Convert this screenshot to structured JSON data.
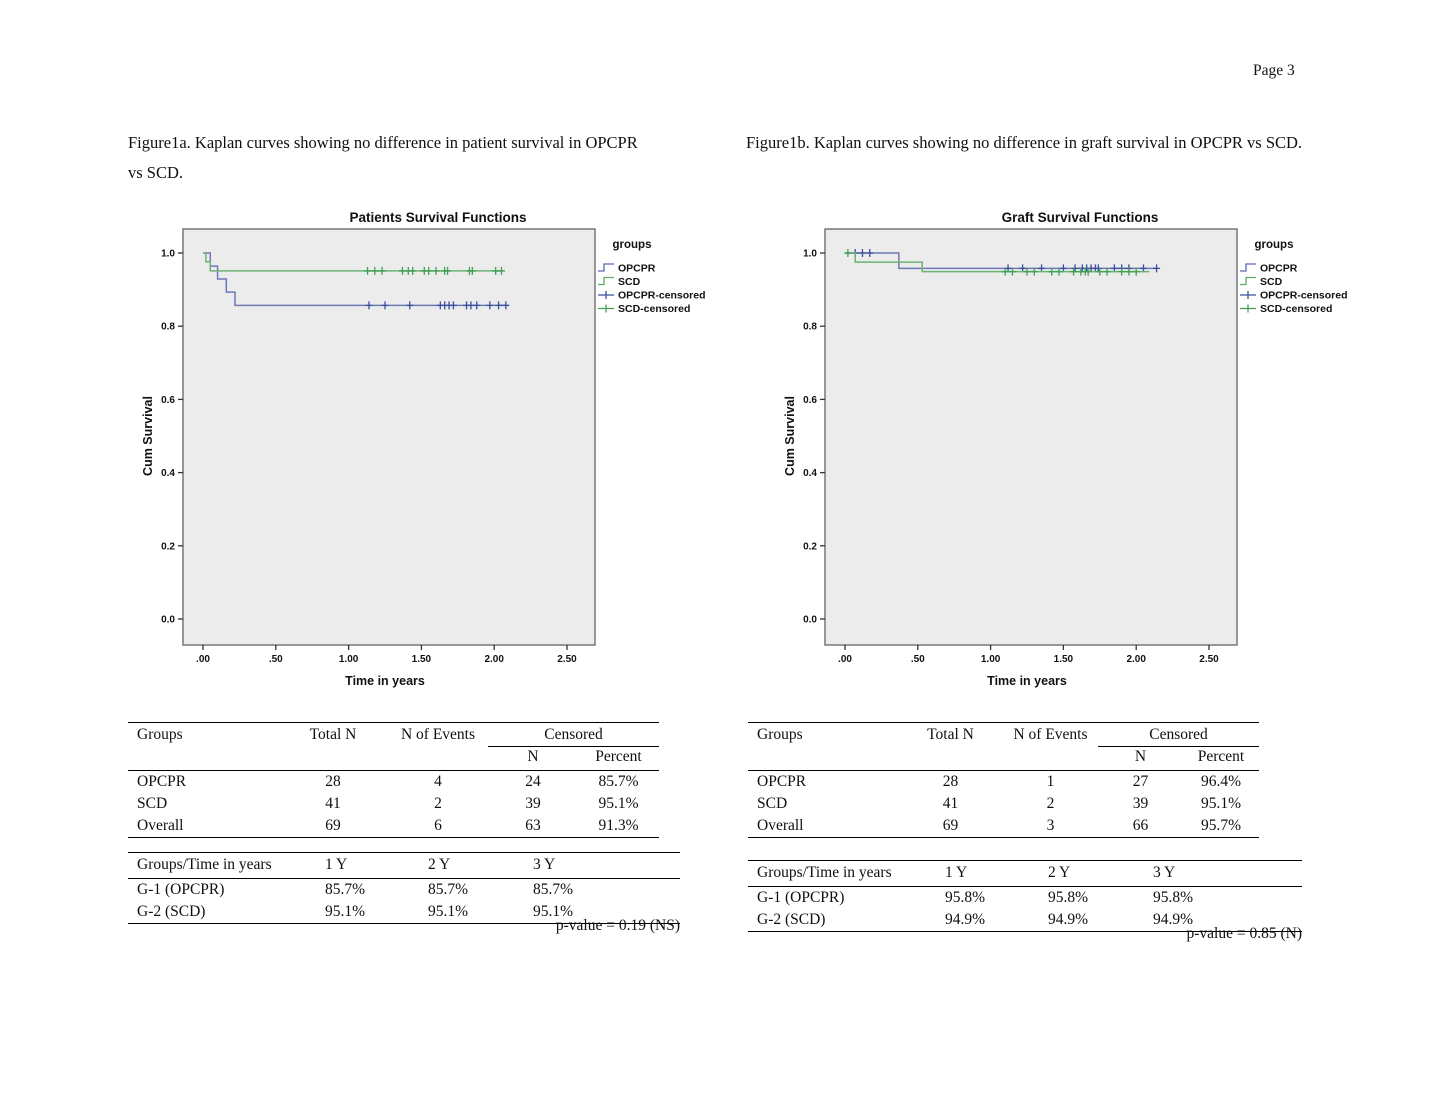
{
  "page": {
    "label": "Page 3"
  },
  "figures": {
    "fig1a": {
      "caption": "Figure1a. Kaplan curves showing no difference in patient survival in OPCPR vs SCD."
    },
    "fig1b": {
      "caption": "Figure1b. Kaplan curves showing no difference in graft survival in OPCPR vs SCD."
    }
  },
  "chart_data": [
    {
      "type": "line",
      "subtype": "kaplan-meier-step",
      "title": "Patients Survival Functions",
      "xlabel": "Time in years",
      "ylabel": "Cum Survival",
      "xlim": [
        -0.14,
        2.69
      ],
      "ylim": [
        -0.07,
        1.07
      ],
      "grid": false,
      "legend_position": "right",
      "xticks": {
        "values": [
          0,
          0.5,
          1.0,
          1.5,
          2.0,
          2.5
        ],
        "labels": [
          ".00",
          ".50",
          "1.00",
          "1.50",
          "2.00",
          "2.50"
        ]
      },
      "yticks": {
        "values": [
          0,
          0.2,
          0.4,
          0.6,
          0.8,
          1.0
        ],
        "labels": [
          "0.0",
          "0.2",
          "0.4",
          "0.6",
          "0.8",
          "1.0"
        ]
      },
      "colors": {
        "plot_bg": "#ececec",
        "plot_border": "#6e6e6e",
        "tick": "#333333"
      },
      "legend": {
        "title": "groups",
        "items": [
          {
            "label": "OPCPR",
            "glyph": "step",
            "color": "#5a68ae"
          },
          {
            "label": "SCD",
            "glyph": "step",
            "color": "#63aa68"
          },
          {
            "label": "OPCPR-censored",
            "glyph": "plus",
            "color": "#3a4f9f"
          },
          {
            "label": "SCD-censored",
            "glyph": "plus",
            "color": "#41a054"
          }
        ]
      },
      "series": [
        {
          "name": "OPCPR",
          "color": "#6d7ab8",
          "marker_color": "#3a4f9f",
          "points": [
            [
              0,
              1.0
            ],
            [
              0.05,
              0.964
            ],
            [
              0.1,
              0.929
            ],
            [
              0.16,
              0.893
            ],
            [
              0.22,
              0.857
            ],
            [
              2.1,
              0.857
            ]
          ],
          "censored": [
            {
              "y": 0.857,
              "x": [
                1.14,
                1.25,
                1.42,
                1.63,
                1.66,
                1.69,
                1.72,
                1.81,
                1.84,
                1.88,
                1.97,
                2.03,
                2.08
              ]
            }
          ]
        },
        {
          "name": "SCD",
          "color": "#6fb274",
          "marker_color": "#41a054",
          "points": [
            [
              0,
              1.0
            ],
            [
              0.02,
              0.976
            ],
            [
              0.05,
              0.951
            ],
            [
              2.06,
              0.951
            ]
          ],
          "censored": [
            {
              "y": 0.951,
              "x": [
                1.13,
                1.18,
                1.23,
                1.37,
                1.41,
                1.44,
                1.52,
                1.55,
                1.6,
                1.66,
                1.68,
                1.83,
                1.85,
                2.01,
                2.05
              ]
            }
          ]
        }
      ]
    },
    {
      "type": "line",
      "subtype": "kaplan-meier-step",
      "title": "Graft Survival Functions",
      "xlabel": "Time in years",
      "ylabel": "Cum Survival",
      "xlim": [
        -0.14,
        2.69
      ],
      "ylim": [
        -0.07,
        1.07
      ],
      "grid": false,
      "legend_position": "right",
      "xticks": {
        "values": [
          0,
          0.5,
          1.0,
          1.5,
          2.0,
          2.5
        ],
        "labels": [
          ".00",
          ".50",
          "1.00",
          "1.50",
          "2.00",
          "2.50"
        ]
      },
      "yticks": {
        "values": [
          0,
          0.2,
          0.4,
          0.6,
          0.8,
          1.0
        ],
        "labels": [
          "0.0",
          "0.2",
          "0.4",
          "0.6",
          "0.8",
          "1.0"
        ]
      },
      "colors": {
        "plot_bg": "#ececec",
        "plot_border": "#6e6e6e",
        "tick": "#333333"
      },
      "legend": {
        "title": "groups",
        "items": [
          {
            "label": "OPCPR",
            "glyph": "step",
            "color": "#5a68ae"
          },
          {
            "label": "SCD",
            "glyph": "step",
            "color": "#63aa68"
          },
          {
            "label": "OPCPR-censored",
            "glyph": "plus",
            "color": "#3a4f9f"
          },
          {
            "label": "SCD-censored",
            "glyph": "plus",
            "color": "#41a054"
          }
        ]
      },
      "series": [
        {
          "name": "OPCPR",
          "color": "#6d7ab8",
          "marker_color": "#3a4f9f",
          "points": [
            [
              0,
              1.0
            ],
            [
              0.37,
              0.958
            ],
            [
              2.14,
              0.958
            ]
          ],
          "censored": [
            {
              "y": 1.0,
              "x": [
                0.07,
                0.12,
                0.17
              ]
            },
            {
              "y": 0.958,
              "x": [
                1.12,
                1.22,
                1.35,
                1.5,
                1.58,
                1.63,
                1.66,
                1.69,
                1.72,
                1.74,
                1.85,
                1.9,
                1.95,
                2.05,
                2.14
              ]
            }
          ]
        },
        {
          "name": "SCD",
          "color": "#6fb274",
          "marker_color": "#41a054",
          "points": [
            [
              0,
              1.0
            ],
            [
              0.07,
              0.975
            ],
            [
              0.53,
              0.949
            ],
            [
              2.09,
              0.949
            ]
          ],
          "censored": [
            {
              "y": 1.0,
              "x": [
                0.02
              ]
            },
            {
              "y": 0.949,
              "x": [
                1.1,
                1.15,
                1.25,
                1.3,
                1.42,
                1.47,
                1.57,
                1.62,
                1.65,
                1.67,
                1.75,
                1.8,
                1.9,
                1.95,
                2.0
              ]
            }
          ]
        }
      ]
    }
  ],
  "tables": {
    "patient_summary": {
      "headers": {
        "groups": "Groups",
        "total_n": "Total N",
        "events": "N of Events",
        "censored": "Censored",
        "n": "N",
        "percent": "Percent"
      },
      "rows": [
        [
          "OPCPR",
          "28",
          "4",
          "24",
          "85.7%"
        ],
        [
          "SCD",
          "41",
          "2",
          "39",
          "95.1%"
        ],
        [
          "Overall",
          "69",
          "6",
          "63",
          "91.3%"
        ]
      ]
    },
    "patient_survival": {
      "headers": [
        "Groups/Time in years",
        "1 Y",
        "2 Y",
        "3 Y"
      ],
      "rows": [
        [
          "G-1 (OPCPR)",
          "85.7%",
          "85.7%",
          "85.7%"
        ],
        [
          "G-2 (SCD)",
          "95.1%",
          "95.1%",
          "95.1%"
        ]
      ],
      "p_value": "p-value = 0.19 (NS)"
    },
    "graft_summary": {
      "headers": {
        "groups": "Groups",
        "total_n": "Total N",
        "events": "N of Events",
        "censored": "Censored",
        "n": "N",
        "percent": "Percent"
      },
      "rows": [
        [
          "OPCPR",
          "28",
          "1",
          "27",
          "96.4%"
        ],
        [
          "SCD",
          "41",
          "2",
          "39",
          "95.1%"
        ],
        [
          "Overall",
          "69",
          "3",
          "66",
          "95.7%"
        ]
      ]
    },
    "graft_survival": {
      "headers": [
        "Groups/Time in years",
        "1 Y",
        "2 Y",
        "3 Y"
      ],
      "rows": [
        [
          "G-1 (OPCPR)",
          "95.8%",
          "95.8%",
          "95.8%"
        ],
        [
          "G-2 (SCD)",
          "94.9%",
          "94.9%",
          "94.9%"
        ]
      ],
      "p_value": "p-value = 0.85 (N)"
    }
  }
}
